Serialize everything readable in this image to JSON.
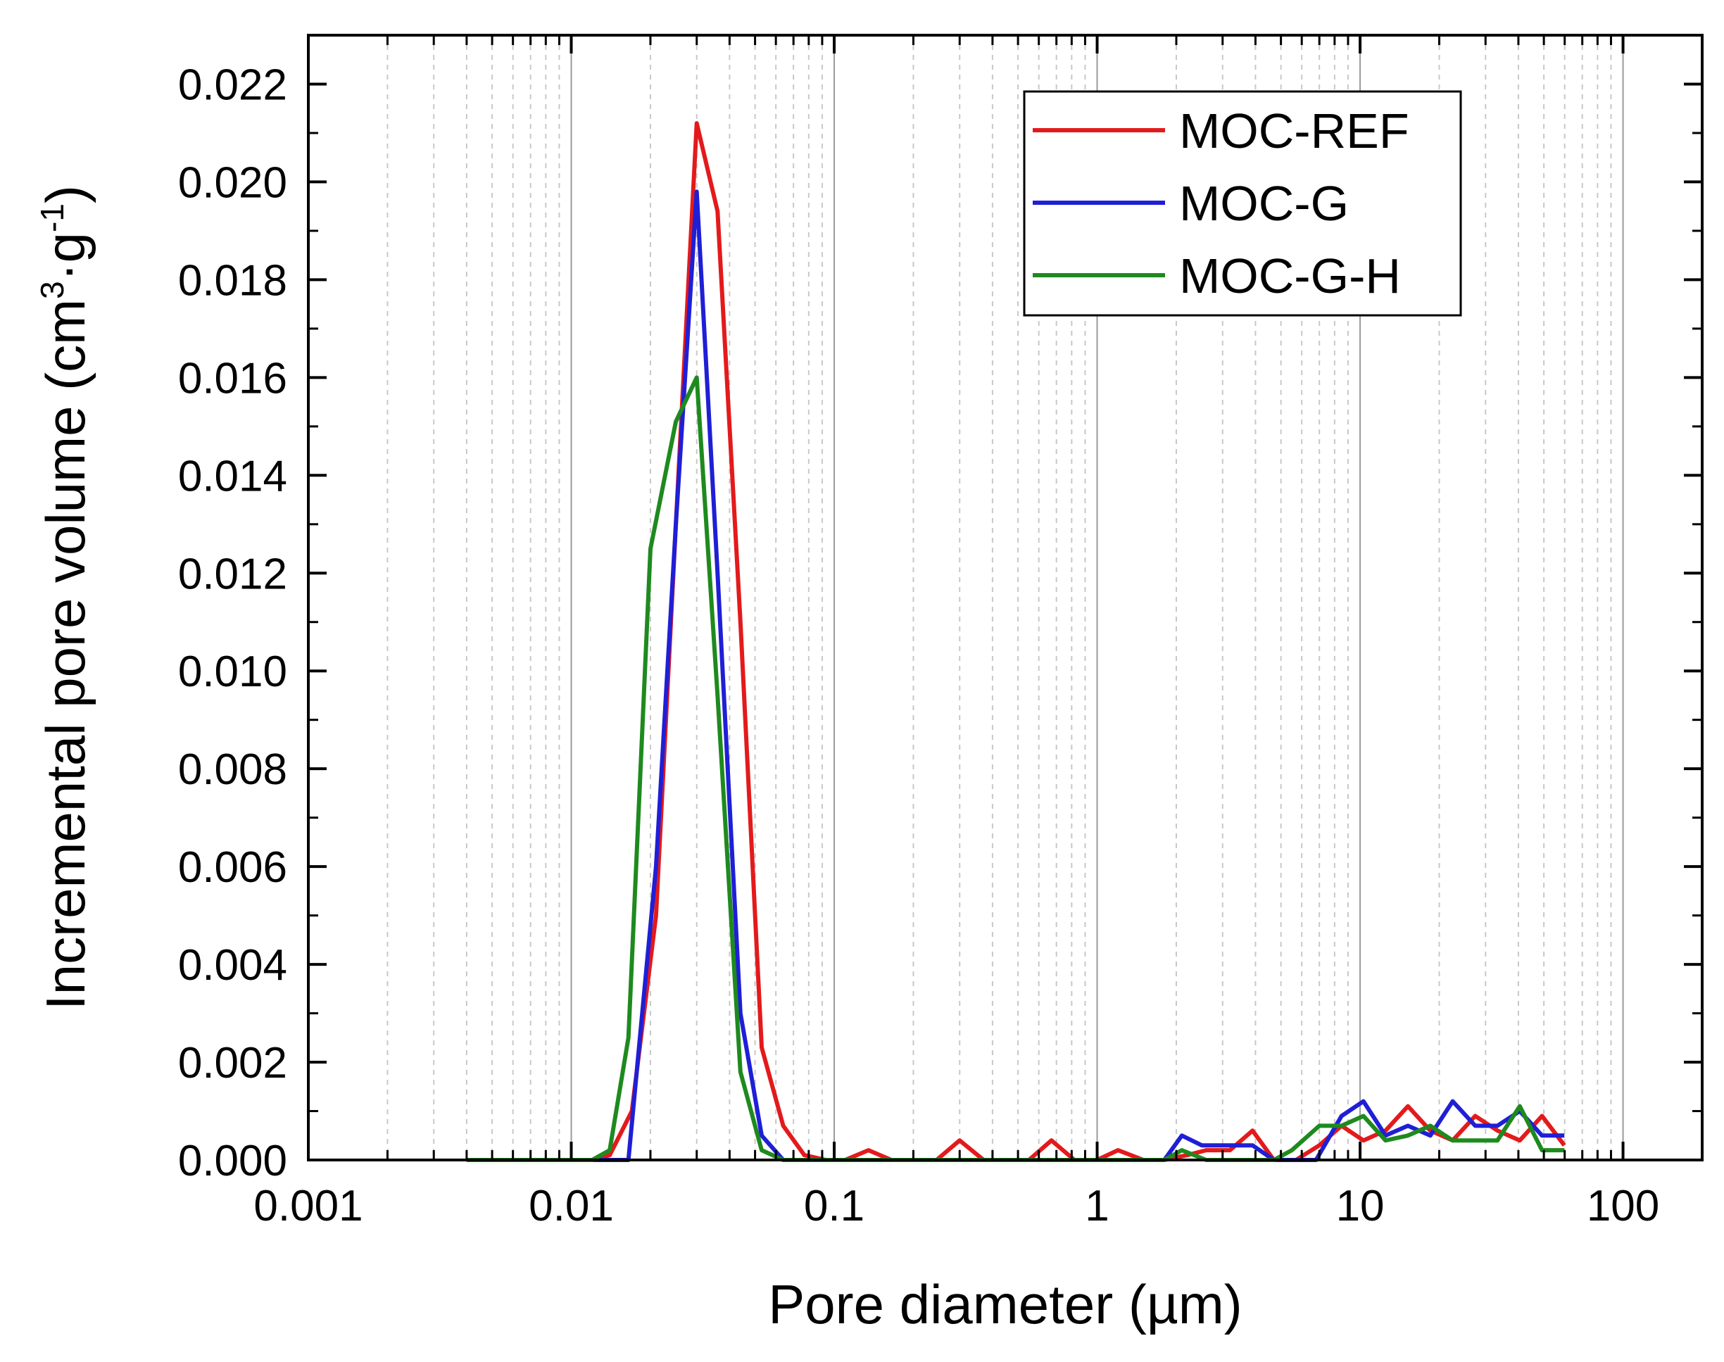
{
  "chart_data": {
    "type": "line",
    "title": "",
    "xlabel": "Pore diameter (µm)",
    "ylabel": {
      "main": "Incremental pore volume (cm",
      "exp1": "3",
      "mid": "·g",
      "exp2": "-1",
      "end": ")"
    },
    "xscale": "log",
    "xlim": [
      0.001,
      200
    ],
    "ylim": [
      0,
      0.023
    ],
    "xticks": [
      0.001,
      0.01,
      0.1,
      1,
      10,
      100
    ],
    "xtick_labels": [
      "0.001",
      "0.01",
      "0.1",
      "1",
      "10",
      "100"
    ],
    "yticks": [
      0,
      0.002,
      0.004,
      0.006,
      0.008,
      0.01,
      0.012,
      0.014,
      0.016,
      0.018,
      0.02,
      0.022
    ],
    "ytick_labels": [
      "0.000",
      "0.002",
      "0.004",
      "0.006",
      "0.008",
      "0.010",
      "0.012",
      "0.014",
      "0.016",
      "0.018",
      "0.020",
      "0.022"
    ],
    "grid": "vertical major solid, minor dashed",
    "legend_position": "top-right",
    "series": [
      {
        "name": "MOC-REF",
        "color": "#e31a1c",
        "points": [
          [
            0.004,
            0
          ],
          [
            0.005,
            0
          ],
          [
            0.006,
            0
          ],
          [
            0.008,
            0
          ],
          [
            0.01,
            0
          ],
          [
            0.012,
            0
          ],
          [
            0.014,
            0.0001
          ],
          [
            0.017,
            0.001
          ],
          [
            0.021,
            0.005
          ],
          [
            0.025,
            0.013
          ],
          [
            0.03,
            0.0212
          ],
          [
            0.036,
            0.0194
          ],
          [
            0.044,
            0.011
          ],
          [
            0.053,
            0.0023
          ],
          [
            0.064,
            0.0007
          ],
          [
            0.077,
            0.0001
          ],
          [
            0.093,
            0
          ],
          [
            0.11,
            0
          ],
          [
            0.135,
            0.0002
          ],
          [
            0.165,
            0
          ],
          [
            0.2,
            0
          ],
          [
            0.245,
            0
          ],
          [
            0.3,
            0.0004
          ],
          [
            0.37,
            0
          ],
          [
            0.45,
            0
          ],
          [
            0.55,
            0
          ],
          [
            0.67,
            0.0004
          ],
          [
            0.82,
            0
          ],
          [
            1.0,
            0
          ],
          [
            1.2,
            0.0002
          ],
          [
            1.5,
            0
          ],
          [
            1.8,
            0
          ],
          [
            2.2,
            0.0001
          ],
          [
            2.6,
            0.0002
          ],
          [
            3.2,
            0.0002
          ],
          [
            3.9,
            0.0006
          ],
          [
            4.7,
            0
          ],
          [
            5.7,
            0
          ],
          [
            7.0,
            0.0003
          ],
          [
            8.5,
            0.0007
          ],
          [
            10.3,
            0.0004
          ],
          [
            12.5,
            0.0006
          ],
          [
            15.2,
            0.0011
          ],
          [
            18.5,
            0.0006
          ],
          [
            22.5,
            0.0004
          ],
          [
            27.4,
            0.0009
          ],
          [
            33.3,
            0.0006
          ],
          [
            40.5,
            0.0004
          ],
          [
            49.2,
            0.0009
          ],
          [
            59.8,
            0.0003
          ]
        ]
      },
      {
        "name": "MOC-G",
        "color": "#1f1fd6",
        "points": [
          [
            0.004,
            0
          ],
          [
            0.005,
            0
          ],
          [
            0.006,
            0
          ],
          [
            0.008,
            0
          ],
          [
            0.01,
            0
          ],
          [
            0.012,
            0
          ],
          [
            0.014,
            0
          ],
          [
            0.0165,
            0
          ],
          [
            0.021,
            0.006
          ],
          [
            0.025,
            0.013
          ],
          [
            0.03,
            0.0198
          ],
          [
            0.036,
            0.012
          ],
          [
            0.044,
            0.003
          ],
          [
            0.053,
            0.0005
          ],
          [
            0.064,
            0
          ],
          [
            0.077,
            0
          ],
          [
            0.093,
            0
          ],
          [
            0.11,
            0
          ],
          [
            0.2,
            0
          ],
          [
            0.5,
            0
          ],
          [
            1.0,
            0
          ],
          [
            1.5,
            0
          ],
          [
            1.8,
            0
          ],
          [
            2.1,
            0.0005
          ],
          [
            2.5,
            0.0003
          ],
          [
            3.2,
            0.0003
          ],
          [
            3.9,
            0.0003
          ],
          [
            4.7,
            0
          ],
          [
            5.7,
            0
          ],
          [
            6.8,
            0
          ],
          [
            8.5,
            0.0009
          ],
          [
            10.3,
            0.0012
          ],
          [
            12.5,
            0.0005
          ],
          [
            15.2,
            0.0007
          ],
          [
            18.5,
            0.0005
          ],
          [
            22.5,
            0.0012
          ],
          [
            27.4,
            0.0007
          ],
          [
            33.3,
            0.0007
          ],
          [
            40.5,
            0.001
          ],
          [
            49.2,
            0.0005
          ],
          [
            59.8,
            0.0005
          ]
        ]
      },
      {
        "name": "MOC-G-H",
        "color": "#1e8a1e",
        "points": [
          [
            0.004,
            0
          ],
          [
            0.005,
            0
          ],
          [
            0.006,
            0
          ],
          [
            0.008,
            0
          ],
          [
            0.01,
            0
          ],
          [
            0.012,
            0
          ],
          [
            0.014,
            0.0002
          ],
          [
            0.0165,
            0.0025
          ],
          [
            0.02,
            0.0125
          ],
          [
            0.025,
            0.0151
          ],
          [
            0.03,
            0.016
          ],
          [
            0.036,
            0.0095
          ],
          [
            0.044,
            0.0018
          ],
          [
            0.053,
            0.0002
          ],
          [
            0.064,
            0
          ],
          [
            0.077,
            0
          ],
          [
            0.093,
            0
          ],
          [
            0.11,
            0
          ],
          [
            0.2,
            0
          ],
          [
            0.5,
            0
          ],
          [
            1.0,
            0
          ],
          [
            1.5,
            0
          ],
          [
            1.8,
            0
          ],
          [
            2.1,
            0.0002
          ],
          [
            2.6,
            0
          ],
          [
            3.2,
            0
          ],
          [
            3.9,
            0
          ],
          [
            4.7,
            0
          ],
          [
            5.5,
            0.0002
          ],
          [
            7.0,
            0.0007
          ],
          [
            8.5,
            0.0007
          ],
          [
            10.3,
            0.0009
          ],
          [
            12.5,
            0.0004
          ],
          [
            15.2,
            0.0005
          ],
          [
            18.5,
            0.0007
          ],
          [
            22.5,
            0.0004
          ],
          [
            27.4,
            0.0004
          ],
          [
            33.3,
            0.0004
          ],
          [
            40.5,
            0.0011
          ],
          [
            49.2,
            0.0002
          ],
          [
            59.8,
            0.0002
          ]
        ]
      }
    ]
  }
}
